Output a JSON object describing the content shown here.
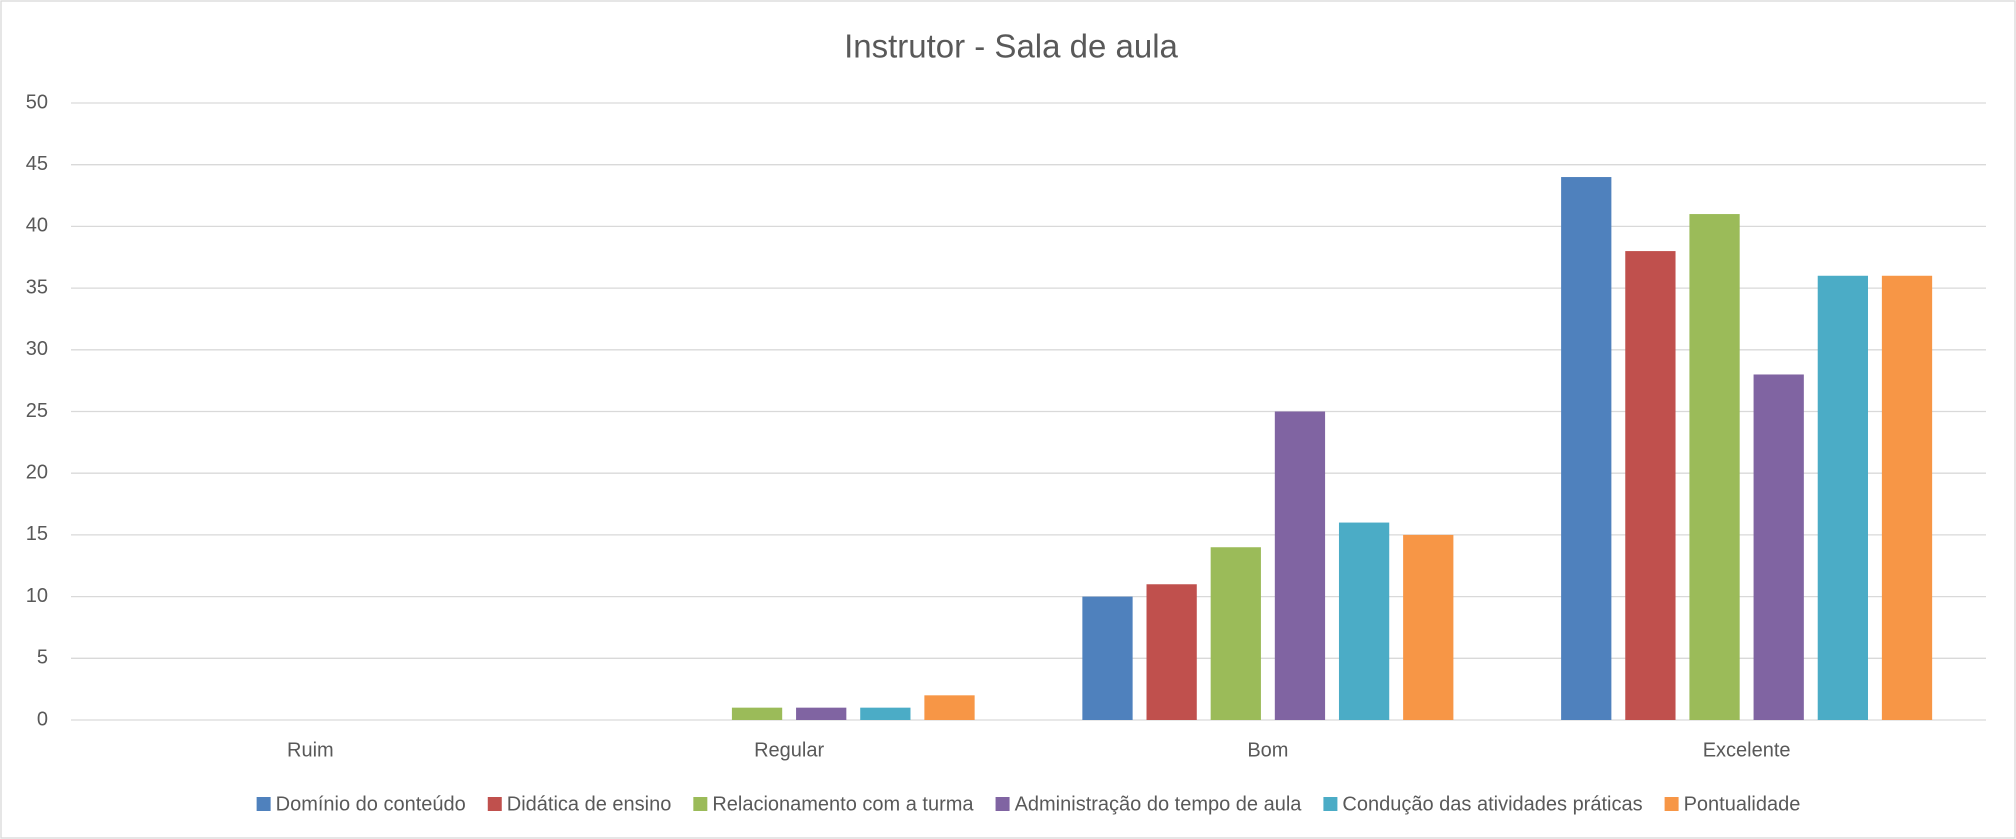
{
  "chart_data": {
    "type": "bar",
    "title": "Instrutor - Sala de aula",
    "categories": [
      "Ruim",
      "Regular",
      "Bom",
      "Excelente"
    ],
    "series": [
      {
        "name": "Domínio do conteúdo",
        "color": "#4f81bd",
        "values": [
          0,
          0,
          10,
          44
        ]
      },
      {
        "name": "Didática de ensino",
        "color": "#c0504d",
        "values": [
          0,
          0,
          11,
          38
        ]
      },
      {
        "name": "Relacionamento com a turma",
        "color": "#9bbb59",
        "values": [
          0,
          1,
          14,
          41
        ]
      },
      {
        "name": "Administração do tempo de aula",
        "color": "#8064a2",
        "values": [
          0,
          1,
          25,
          28
        ]
      },
      {
        "name": "Condução das atividades práticas",
        "color": "#4bacc6",
        "values": [
          0,
          1,
          16,
          36
        ]
      },
      {
        "name": "Pontualidade",
        "color": "#f79646",
        "values": [
          0,
          2,
          15,
          36
        ]
      }
    ],
    "ylim": [
      0,
      50
    ],
    "yticks": [
      0,
      5,
      10,
      15,
      20,
      25,
      30,
      35,
      40,
      45,
      50
    ],
    "grid": true,
    "legend": "bottom"
  }
}
